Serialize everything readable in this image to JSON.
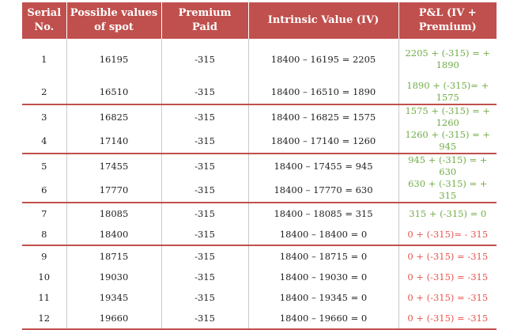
{
  "header": {
    "serial": "Serial No.",
    "spot": "Possible values of spot",
    "premium": "Premium Paid",
    "iv": "Intrinsic Value (IV)",
    "pl": "P&L (IV + Premium)"
  },
  "colors": {
    "header_bg": "#c0504d",
    "profit": "#70ad47",
    "loss": "#e8554e"
  },
  "rows": [
    {
      "serial": "1",
      "spot": "16195",
      "premium": "-315",
      "iv": "18400 – 16195 = 2205",
      "pl": "2205 + (-315) = + 1890",
      "result": "profit"
    },
    {
      "serial": "2",
      "spot": "16510",
      "premium": "-315",
      "iv": "18400 – 16510 = 1890",
      "pl": "1890 + (-315)= + 1575",
      "result": "profit"
    },
    {
      "serial": "3",
      "spot": "16825",
      "premium": "-315",
      "iv": "18400 – 16825 = 1575",
      "pl": "1575 + (-315) = + 1260",
      "result": "profit"
    },
    {
      "serial": "4",
      "spot": "17140",
      "premium": "-315",
      "iv": "18400 – 17140 = 1260",
      "pl": "1260 + (-315) = + 945",
      "result": "profit"
    },
    {
      "serial": "5",
      "spot": "17455",
      "premium": "-315",
      "iv": "18400 – 17455 = 945",
      "pl": "945 + (-315) = + 630",
      "result": "profit"
    },
    {
      "serial": "6",
      "spot": "17770",
      "premium": "-315",
      "iv": "18400 – 17770 = 630",
      "pl": "630 + (-315) = + 315",
      "result": "profit"
    },
    {
      "serial": "7",
      "spot": "18085",
      "premium": "-315",
      "iv": "18400 – 18085 = 315",
      "pl": "315 + (-315) = 0",
      "result": "profit"
    },
    {
      "serial": "8",
      "spot": "18400",
      "premium": "-315",
      "iv": "18400 – 18400 = 0",
      "pl": "0 + (-315)= - 315",
      "result": "loss"
    },
    {
      "serial": "9",
      "spot": "18715",
      "premium": "-315",
      "iv": "18400 – 18715 = 0",
      "pl": "0 + (-315) = -315",
      "result": "loss"
    },
    {
      "serial": "10",
      "spot": "19030",
      "premium": "-315",
      "iv": "18400 – 19030 = 0",
      "pl": "0 + (-315) = -315",
      "result": "loss"
    },
    {
      "serial": "11",
      "spot": "19345",
      "premium": "-315",
      "iv": "18400 – 19345 = 0",
      "pl": "0 + (-315) = -315",
      "result": "loss"
    },
    {
      "serial": "12",
      "spot": "19660",
      "premium": "-315",
      "iv": "18400 – 19660 = 0",
      "pl": "0 + (-315) = -315",
      "result": "loss"
    }
  ]
}
